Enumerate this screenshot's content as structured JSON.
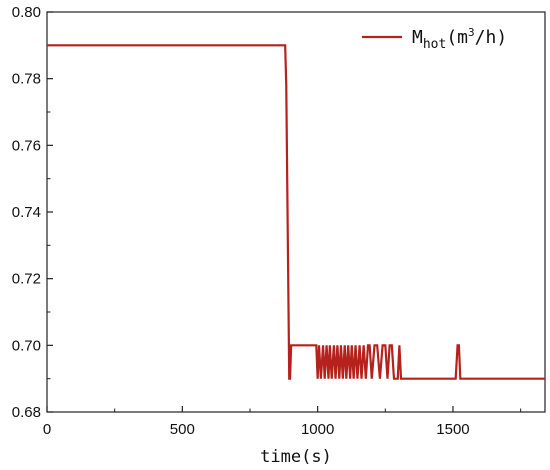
{
  "chart_data": {
    "type": "line",
    "xlabel": "time(s)",
    "ylabel": "",
    "xlim": [
      0,
      1840
    ],
    "ylim": [
      0.68,
      0.8
    ],
    "x_ticks": [
      0,
      500,
      1000,
      1500
    ],
    "x_tick_labels": [
      "0",
      "500",
      "1000",
      "1500"
    ],
    "y_ticks": [
      0.68,
      0.7,
      0.72,
      0.74,
      0.76,
      0.78,
      0.8
    ],
    "y_tick_labels": [
      "0.68",
      "0.70",
      "0.72",
      "0.74",
      "0.76",
      "0.78",
      "0.80"
    ],
    "grid": false,
    "legend_position": "top-right",
    "series": [
      {
        "name": "Mhot(m3/h)",
        "legend": {
          "base": "M",
          "sub": "hot",
          "pre": "(m",
          "sup": "3",
          "post": "/h)"
        },
        "color": "#b5211d",
        "x": [
          0,
          880,
          884,
          895,
          898,
          902,
          905,
          995,
          1000,
          1005,
          1012,
          1020,
          1026,
          1033,
          1040,
          1045,
          1052,
          1060,
          1066,
          1073,
          1080,
          1086,
          1093,
          1100,
          1106,
          1113,
          1120,
          1126,
          1133,
          1140,
          1147,
          1155,
          1162,
          1170,
          1178,
          1186,
          1192,
          1200,
          1210,
          1220,
          1230,
          1240,
          1250,
          1258,
          1266,
          1274,
          1282,
          1290,
          1296,
          1302,
          1308,
          1312,
          1318,
          1510,
          1517,
          1522,
          1527,
          1534,
          1840
        ],
        "y": [
          0.79,
          0.79,
          0.778,
          0.69,
          0.69,
          0.7,
          0.7,
          0.7,
          0.69,
          0.7,
          0.69,
          0.7,
          0.69,
          0.7,
          0.69,
          0.7,
          0.69,
          0.7,
          0.69,
          0.7,
          0.69,
          0.7,
          0.69,
          0.7,
          0.69,
          0.7,
          0.69,
          0.7,
          0.69,
          0.7,
          0.69,
          0.7,
          0.69,
          0.7,
          0.69,
          0.7,
          0.7,
          0.69,
          0.7,
          0.7,
          0.69,
          0.7,
          0.7,
          0.69,
          0.7,
          0.7,
          0.69,
          0.69,
          0.69,
          0.7,
          0.69,
          0.69,
          0.69,
          0.69,
          0.7,
          0.7,
          0.69,
          0.69,
          0.69
        ]
      }
    ]
  }
}
